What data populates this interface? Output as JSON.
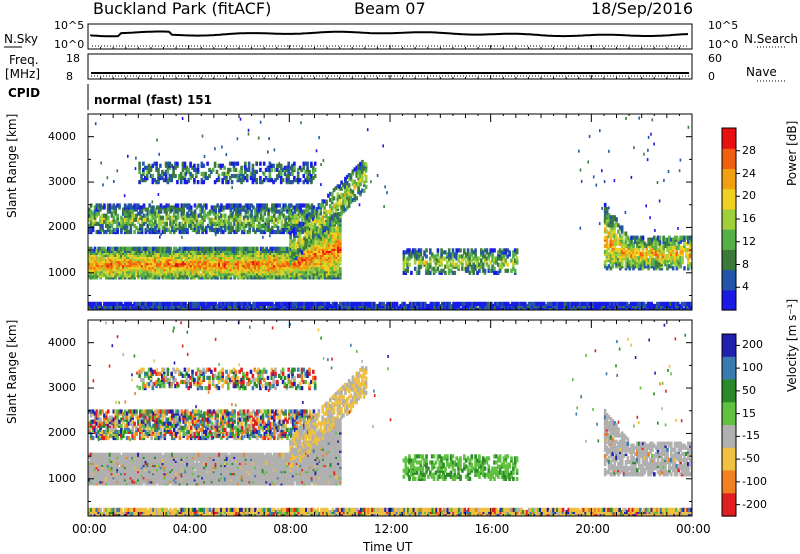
{
  "header": {
    "station": "Buckland Park (fitACF)",
    "beam": "Beam 07",
    "date": "18/Sep/2016"
  },
  "panels": {
    "nsky_label": "N.Sky",
    "nsky_ticks": [
      "10^5",
      "10^0"
    ],
    "nsearch_label": "N.Search",
    "nsearch_ticks": [
      "10^5",
      "10^0"
    ],
    "freq_label": "Freq.",
    "freq_unit": "[MHz]",
    "freq_ticks": [
      "18",
      "8"
    ],
    "nave_label": "Nave",
    "nave_ticks": [
      "60",
      "0"
    ],
    "cpid_label": "CPID",
    "cpid_text": "normal (fast) 151"
  },
  "chart_data": [
    {
      "type": "heatmap",
      "name": "power",
      "ylabel": "Slant Range [km]",
      "yticks": [
        "4000",
        "3000",
        "2000",
        "1000"
      ],
      "ytick_values": [
        4000,
        3000,
        2000,
        1000
      ],
      "ylim": [
        180,
        4500
      ],
      "colorbar_label": "Power [dB]",
      "colorbar_ticks": [
        "28",
        "24",
        "20",
        "16",
        "12",
        "8",
        "4"
      ],
      "colorbar_values": [
        28,
        24,
        20,
        16,
        12,
        8,
        4
      ],
      "colorbar_range": [
        0,
        32
      ],
      "colors": [
        "#1a1ae6",
        "#2255a8",
        "#3c7a3c",
        "#56b04a",
        "#9fcf3a",
        "#f0d020",
        "#f0a010",
        "#f06010",
        "#e81010"
      ]
    },
    {
      "type": "heatmap",
      "name": "velocity",
      "ylabel": "Slant Range [km]",
      "yticks": [
        "4000",
        "3000",
        "2000",
        "1000"
      ],
      "ytick_values": [
        4000,
        3000,
        2000,
        1000
      ],
      "ylim": [
        180,
        4500
      ],
      "colorbar_label": "Velocity [m s⁻¹]",
      "colorbar_ticks": [
        "200",
        "100",
        "50",
        "15",
        "-15",
        "-50",
        "-100",
        "-200"
      ],
      "colorbar_values": [
        200,
        100,
        50,
        15,
        -15,
        -50,
        -100,
        -200
      ],
      "colors": [
        "#2020b0",
        "#3a7ab0",
        "#2a8a2a",
        "#60c040",
        "#b0b0b0",
        "#f0c040",
        "#f08020",
        "#e02020"
      ]
    }
  ],
  "time_axis": {
    "ticks": [
      "00:00",
      "04:00",
      "08:00",
      "12:00",
      "16:00",
      "20:00",
      "00:00"
    ],
    "tick_hours": [
      0,
      4,
      8,
      12,
      16,
      20,
      24
    ],
    "label": "Time UT"
  }
}
